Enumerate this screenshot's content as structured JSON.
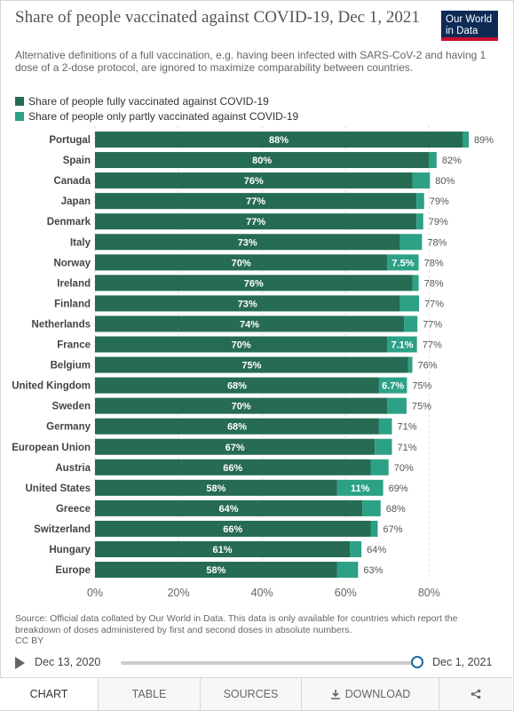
{
  "title": "Share of people vaccinated against COVID-19, Dec 1, 2021",
  "subtitle": "Alternative definitions of a full vaccination, e.g. having been infected with SARS-CoV-2 and having 1 dose of a 2-dose protocol, are ignored to maximize comparability between countries.",
  "logo": {
    "line1": "Our World",
    "line2": "in Data"
  },
  "legend": [
    {
      "label": "Share of people fully vaccinated against COVID-19",
      "color": "#266b53"
    },
    {
      "label": "Share of people only partly vaccinated against COVID-19",
      "color": "#2ca185"
    }
  ],
  "source": "Source: Official data collated by Our World in Data. This data is only available for countries which report the breakdown of doses administered by first and second doses in absolute numbers.",
  "license": "CC BY",
  "timeline": {
    "start": "Dec 13, 2020",
    "end": "Dec 1, 2021"
  },
  "tabs": [
    "CHART",
    "TABLE",
    "SOURCES",
    "DOWNLOAD"
  ],
  "share_icon": "share-icon",
  "chart_data": {
    "type": "bar",
    "orientation": "horizontal",
    "stacked": true,
    "categories": [
      "Portugal",
      "Spain",
      "Canada",
      "Japan",
      "Denmark",
      "Italy",
      "Norway",
      "Ireland",
      "Finland",
      "Netherlands",
      "France",
      "Belgium",
      "United Kingdom",
      "Sweden",
      "Germany",
      "European Union",
      "Austria",
      "United States",
      "Greece",
      "Switzerland",
      "Hungary",
      "Europe"
    ],
    "series": [
      {
        "name": "Share of people fully vaccinated against COVID-19",
        "color": "#266b53",
        "values": [
          88,
          80,
          76,
          77,
          77,
          73,
          70,
          76,
          73,
          74,
          70,
          75,
          68,
          70,
          68,
          67,
          66,
          58,
          64,
          66,
          61,
          58
        ],
        "labels": [
          "88%",
          "80%",
          "76%",
          "77%",
          "77%",
          "73%",
          "70%",
          "76%",
          "73%",
          "74%",
          "70%",
          "75%",
          "68%",
          "70%",
          "68%",
          "67%",
          "66%",
          "58%",
          "64%",
          "66%",
          "61%",
          "58%"
        ]
      },
      {
        "name": "Share of people only partly vaccinated against COVID-19",
        "color": "#2ca185",
        "values": [
          1.5,
          1.8,
          4.2,
          1.8,
          1.6,
          5.3,
          7.5,
          1.5,
          4.6,
          3.2,
          7.1,
          1.0,
          6.7,
          4.6,
          3.1,
          4.1,
          4.3,
          11,
          4.4,
          1.7,
          2.8,
          5.0
        ],
        "labels": [
          "",
          "",
          "",
          "",
          "",
          "",
          "7.5%",
          "",
          "",
          "",
          "7.1%",
          "",
          "6.7%",
          "",
          "",
          "",
          "",
          "11%",
          "",
          "",
          "",
          ""
        ]
      }
    ],
    "totals": [
      "89%",
      "82%",
      "80%",
      "79%",
      "79%",
      "78%",
      "78%",
      "78%",
      "77%",
      "77%",
      "77%",
      "76%",
      "75%",
      "75%",
      "71%",
      "71%",
      "70%",
      "69%",
      "68%",
      "67%",
      "64%",
      "63%"
    ],
    "xlim": [
      0,
      88
    ],
    "xticks": [
      0,
      20,
      40,
      60,
      80
    ],
    "xtick_labels": [
      "0%",
      "20%",
      "40%",
      "60%",
      "80%"
    ],
    "grid": true
  }
}
